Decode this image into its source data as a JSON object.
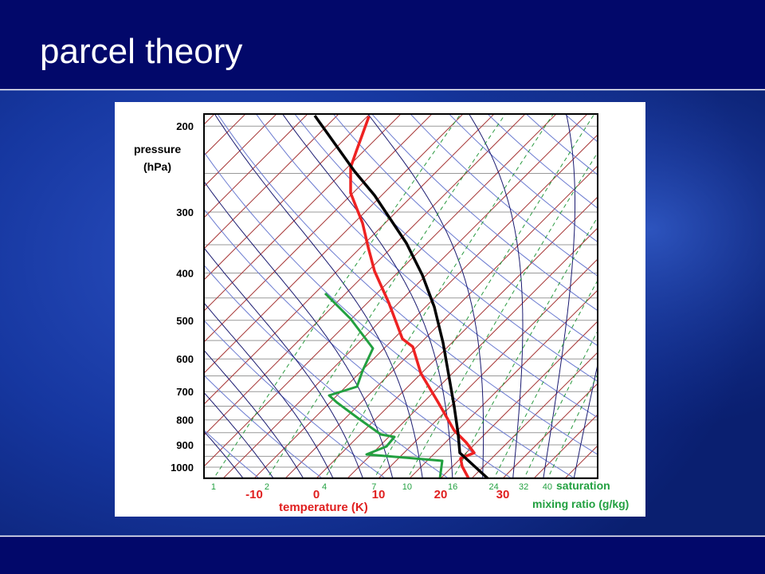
{
  "title": "parcel theory",
  "diagram": {
    "pressure_axis": {
      "title": [
        "pressure",
        "(hPa)"
      ],
      "labels": [
        200,
        300,
        400,
        500,
        600,
        700,
        800,
        900,
        1000
      ]
    },
    "temperature_axis": {
      "title": "temperature (K)",
      "labels": [
        -10,
        0,
        10,
        20,
        30
      ]
    },
    "mixing_ratio_axis": {
      "title": [
        "saturation",
        "mixing ratio (g/kg)"
      ],
      "labels": [
        1,
        2,
        4,
        7,
        10,
        16,
        24,
        32,
        40
      ]
    }
  }
}
